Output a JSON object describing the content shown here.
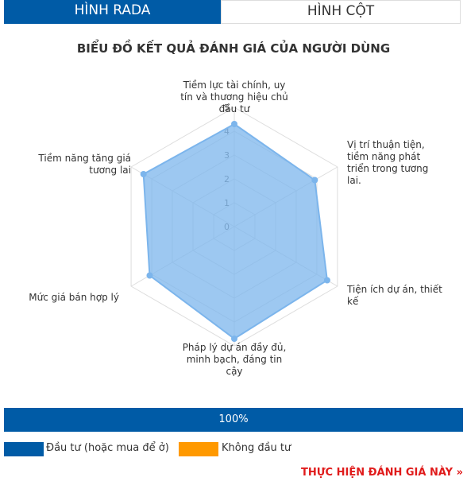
{
  "tabs": [
    "HÌNH RADA",
    "HÌNH CỘT"
  ],
  "chart_data": {
    "type": "radar",
    "title": "BIỂU ĐỒ KẾT QUẢ ĐÁNH GIÁ CỦA NGƯỜI DÙNG",
    "categories": [
      "Tiềm lực tài chính, uy tín và thương hiệu chủ đầu tư",
      "Vị trí thuận tiện, tiềm năng phát triển trong tương lai.",
      "Tiện ích dự án, thiết kế",
      "Pháp lý dự án đầy đủ, minh bạch, đáng tin cậy",
      "Mức giá bán hợp lý",
      "Tiềm năng tăng giá tương lai"
    ],
    "values": [
      4.3,
      3.9,
      4.5,
      4.7,
      4.1,
      4.4
    ],
    "color": "#7cb5ec",
    "ylim": [
      0,
      5
    ],
    "yticks": [
      0,
      1,
      2,
      3,
      4,
      5
    ],
    "grid": true
  },
  "progress": {
    "value": 100,
    "label": "100%",
    "color": "#005ba6"
  },
  "legend": [
    {
      "name": "Đầu tư (hoặc mua để ở)",
      "color": "#005ba6"
    },
    {
      "name": "Không đầu tư",
      "color": "#ff9900"
    }
  ],
  "link": "THỰC HIỆN ĐÁNH GIÁ NÀY »"
}
